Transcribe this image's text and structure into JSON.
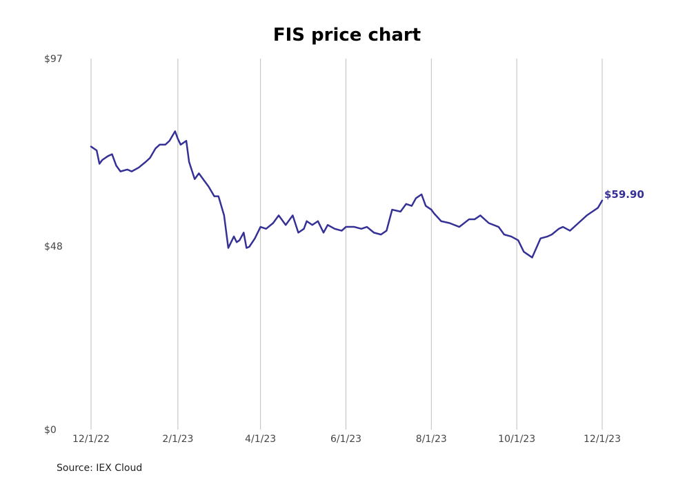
{
  "chart_data": {
    "type": "line",
    "title": "FIS price chart",
    "xlabel": "",
    "ylabel": "",
    "source": "Source: IEX Cloud",
    "grid": "vertical",
    "line_color": "#343096",
    "x_range": [
      "2022-12-01",
      "2023-12-01"
    ],
    "x_ticks": [
      {
        "date": "2022-12-01",
        "label": "12/1/22"
      },
      {
        "date": "2023-02-01",
        "label": "2/1/23"
      },
      {
        "date": "2023-04-01",
        "label": "4/1/23"
      },
      {
        "date": "2023-06-01",
        "label": "6/1/23"
      },
      {
        "date": "2023-08-01",
        "label": "8/1/23"
      },
      {
        "date": "2023-10-01",
        "label": "10/1/23"
      },
      {
        "date": "2023-12-01",
        "label": "12/1/23"
      }
    ],
    "y_range": [
      0,
      97
    ],
    "y_ticks": [
      {
        "value": 0,
        "label": "$0"
      },
      {
        "value": 48,
        "label": "$48"
      },
      {
        "value": 97,
        "label": "$97"
      }
    ],
    "last_value_label": "$59.90",
    "series": [
      {
        "x": [
          "2022-12-01",
          "2022-12-05",
          "2022-12-07",
          "2022-12-09",
          "2022-12-13",
          "2022-12-16",
          "2022-12-19",
          "2022-12-22",
          "2022-12-27",
          "2022-12-30",
          "2023-01-04",
          "2023-01-09",
          "2023-01-12",
          "2023-01-16",
          "2023-01-19",
          "2023-01-23",
          "2023-01-26",
          "2023-01-30",
          "2023-02-01",
          "2023-02-03",
          "2023-02-07",
          "2023-02-09",
          "2023-02-13",
          "2023-02-16",
          "2023-02-20",
          "2023-02-23",
          "2023-02-27",
          "2023-03-02",
          "2023-03-06",
          "2023-03-09",
          "2023-03-13",
          "2023-03-15",
          "2023-03-17",
          "2023-03-20",
          "2023-03-22",
          "2023-03-24",
          "2023-03-28",
          "2023-04-01",
          "2023-04-05",
          "2023-04-10",
          "2023-04-14",
          "2023-04-19",
          "2023-04-24",
          "2023-04-28",
          "2023-05-02",
          "2023-05-04",
          "2023-05-08",
          "2023-05-12",
          "2023-05-16",
          "2023-05-19",
          "2023-05-24",
          "2023-05-29",
          "2023-06-01",
          "2023-06-07",
          "2023-06-12",
          "2023-06-16",
          "2023-06-21",
          "2023-06-26",
          "2023-06-30",
          "2023-07-04",
          "2023-07-10",
          "2023-07-14",
          "2023-07-18",
          "2023-07-21",
          "2023-07-25",
          "2023-07-28",
          "2023-08-01",
          "2023-08-03",
          "2023-08-08",
          "2023-08-14",
          "2023-08-21",
          "2023-08-28",
          "2023-09-01",
          "2023-09-05",
          "2023-09-11",
          "2023-09-18",
          "2023-09-22",
          "2023-09-27",
          "2023-10-02",
          "2023-10-06",
          "2023-10-12",
          "2023-10-18",
          "2023-10-23",
          "2023-10-26",
          "2023-10-31",
          "2023-11-03",
          "2023-11-08",
          "2023-11-14",
          "2023-11-20",
          "2023-11-24",
          "2023-11-28",
          "2023-12-01"
        ],
        "y": [
          74.0,
          73.0,
          69.5,
          70.5,
          71.5,
          72.0,
          69.0,
          67.5,
          68.0,
          67.5,
          68.5,
          70.0,
          71.0,
          73.5,
          74.5,
          74.5,
          75.5,
          78.0,
          76.0,
          74.5,
          75.5,
          70.0,
          65.5,
          67.0,
          65.0,
          63.5,
          61.0,
          61.0,
          56.0,
          47.5,
          50.5,
          49.0,
          49.5,
          51.5,
          47.5,
          47.8,
          50.0,
          53.0,
          52.5,
          54.0,
          56.0,
          53.5,
          56.0,
          51.5,
          52.5,
          54.5,
          53.5,
          54.5,
          51.5,
          53.5,
          52.5,
          52.0,
          53.0,
          53.0,
          52.5,
          53.0,
          51.5,
          51.0,
          52.0,
          57.5,
          57.0,
          59.0,
          58.5,
          60.5,
          61.5,
          58.5,
          57.5,
          56.5,
          54.5,
          54.0,
          53.0,
          55.0,
          55.0,
          56.0,
          54.0,
          53.0,
          51.0,
          50.5,
          49.5,
          46.5,
          45.0,
          50.0,
          50.5,
          51.0,
          52.5,
          53.0,
          52.0,
          54.0,
          56.0,
          57.0,
          58.0,
          59.9
        ]
      }
    ]
  }
}
